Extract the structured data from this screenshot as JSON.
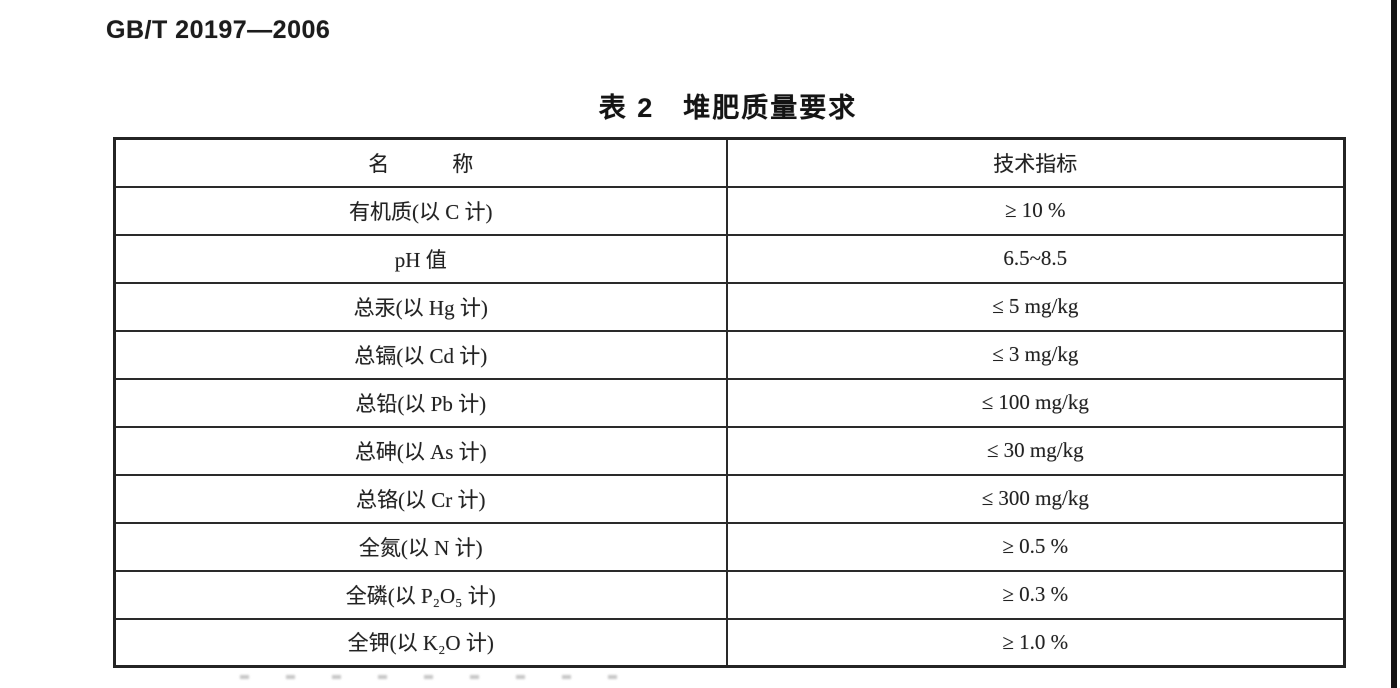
{
  "page": {
    "standard_number": "GB/T 20197—2006",
    "table_caption": "表 2　堆肥质量要求"
  },
  "table": {
    "headers": {
      "name": "名　　　称",
      "indicator": "技术指标"
    },
    "rows": [
      {
        "name": "有机质(以 C 计)",
        "value": "≥ 10 %"
      },
      {
        "name": "pH 值",
        "value": "6.5~8.5"
      },
      {
        "name": "总汞(以 Hg 计)",
        "value": "≤ 5 mg/kg"
      },
      {
        "name": "总镉(以 Cd 计)",
        "value": "≤ 3 mg/kg"
      },
      {
        "name": "总铅(以 Pb 计)",
        "value": "≤ 100 mg/kg"
      },
      {
        "name": "总砷(以 As 计)",
        "value": "≤ 30 mg/kg"
      },
      {
        "name": "总铬(以 Cr 计)",
        "value": "≤ 300 mg/kg"
      },
      {
        "name": "全氮(以 N 计)",
        "value": "≥ 0.5 %"
      },
      {
        "name": "全磷(以 P₂O₅ 计)",
        "value": "≥ 0.3 %"
      },
      {
        "name": "全钾(以 K₂O 计)",
        "value": "≥ 1.0 %"
      }
    ]
  },
  "colors": {
    "ink": "#1f1f1f",
    "table_border": "#2a2a2a",
    "scan_edge_line": "#141414",
    "background": "#ffffff"
  }
}
